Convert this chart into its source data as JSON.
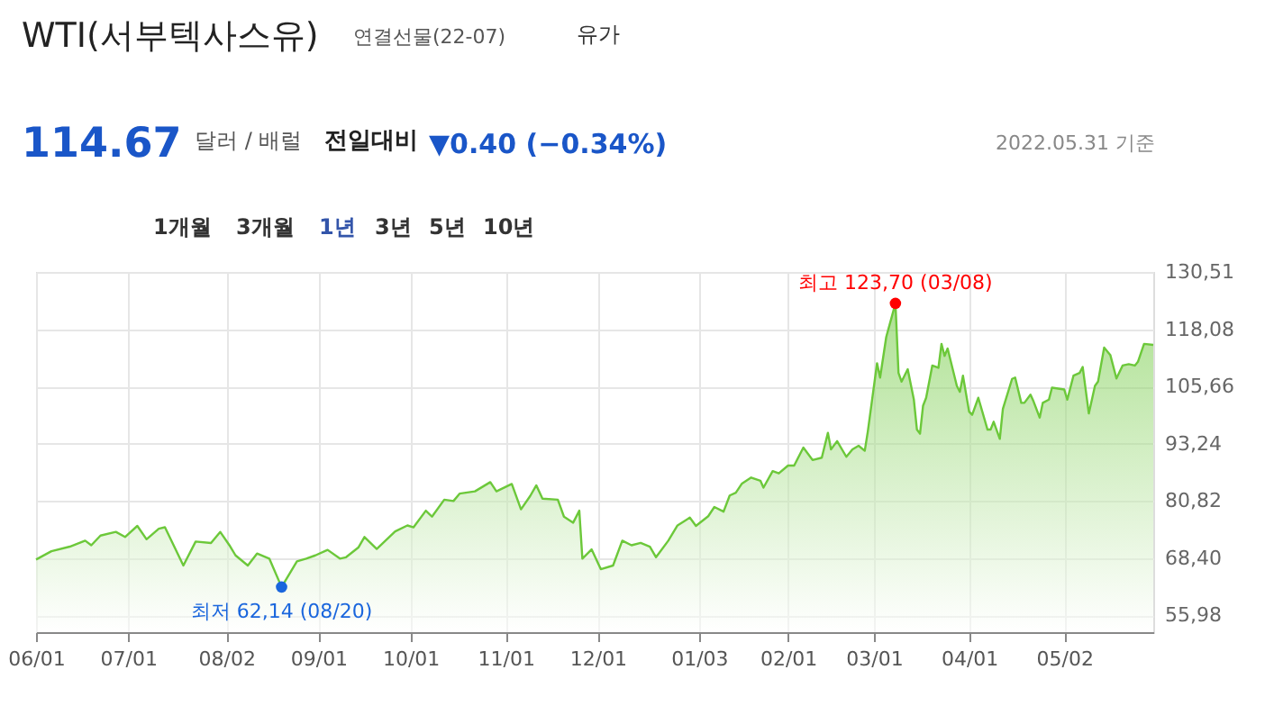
{
  "chart_data": {
    "type": "area",
    "title": "WTI(서부텍사스유)",
    "subtitle": "연결선물(22-07)",
    "annotations": [
      "유가",
      "114.67",
      "달러 / 배럴",
      "전일대비",
      "▼0.40 (−0.34%)",
      "2022.05.31 기준",
      "1개월",
      "3개월",
      "1년",
      "3년",
      "5년",
      "10년",
      {
        "text": "최고 123,70 (03/08)",
        "x": "2022-03-08",
        "y": 123.7
      },
      {
        "text": "최저 62,14 (08/20)",
        "x": "2021-08-20",
        "y": 62.14
      }
    ],
    "x": [
      "2021-06-01",
      "2021-06-06",
      "2021-06-12",
      "2021-06-17",
      "2021-06-19",
      "2021-06-22",
      "2021-06-27",
      "2021-06-30",
      "2021-07-04",
      "2021-07-07",
      "2021-07-11",
      "2021-07-13",
      "2021-07-19",
      "2021-07-23",
      "2021-07-28",
      "2021-07-31",
      "2021-08-03",
      "2021-08-05",
      "2021-08-09",
      "2021-08-12",
      "2021-08-16",
      "2021-08-20",
      "2021-08-25",
      "2021-08-28",
      "2021-08-31",
      "2021-09-04",
      "2021-09-08",
      "2021-09-10",
      "2021-09-14",
      "2021-09-16",
      "2021-09-20",
      "2021-09-26",
      "2021-09-30",
      "2021-10-02",
      "2021-10-06",
      "2021-10-08",
      "2021-10-12",
      "2021-10-15",
      "2021-10-17",
      "2021-10-22",
      "2021-10-27",
      "2021-10-29",
      "2021-11-03",
      "2021-11-06",
      "2021-11-09",
      "2021-11-11",
      "2021-11-13",
      "2021-11-18",
      "2021-11-20",
      "2021-11-23",
      "2021-11-25",
      "2021-11-26",
      "2021-11-29",
      "2021-12-02",
      "2021-12-06",
      "2021-12-09",
      "2021-12-12",
      "2021-12-15",
      "2021-12-18",
      "2021-12-20",
      "2021-12-24",
      "2021-12-27",
      "2021-12-31",
      "2022-01-02",
      "2022-01-06",
      "2022-01-08",
      "2022-01-11",
      "2022-01-13",
      "2022-01-15",
      "2022-01-17",
      "2022-01-20",
      "2022-01-23",
      "2022-01-24",
      "2022-01-27",
      "2022-01-29",
      "2022-02-01",
      "2022-02-03",
      "2022-02-06",
      "2022-02-09",
      "2022-02-12",
      "2022-02-14",
      "2022-02-15",
      "2022-02-17",
      "2022-02-20",
      "2022-02-22",
      "2022-02-24",
      "2022-02-26",
      "2022-02-27",
      "2022-03-02",
      "2022-03-03",
      "2022-03-05",
      "2022-03-08",
      "2022-03-09",
      "2022-03-10",
      "2022-03-12",
      "2022-03-14",
      "2022-03-15",
      "2022-03-16",
      "2022-03-17",
      "2022-03-18",
      "2022-03-20",
      "2022-03-22",
      "2022-03-23",
      "2022-03-24",
      "2022-03-25",
      "2022-03-28",
      "2022-03-29",
      "2022-03-30",
      "2022-04-01",
      "2022-04-02",
      "2022-04-04",
      "2022-04-07",
      "2022-04-08",
      "2022-04-09",
      "2022-04-11",
      "2022-04-12",
      "2022-04-15",
      "2022-04-16",
      "2022-04-18",
      "2022-04-19",
      "2022-04-21",
      "2022-04-22",
      "2022-04-24",
      "2022-04-25",
      "2022-04-27",
      "2022-04-28",
      "2022-05-02",
      "2022-05-03",
      "2022-05-05",
      "2022-05-07",
      "2022-05-08",
      "2022-05-10",
      "2022-05-12",
      "2022-05-13",
      "2022-05-15",
      "2022-05-17",
      "2022-05-19",
      "2022-05-21",
      "2022-05-23",
      "2022-05-25",
      "2022-05-26",
      "2022-05-28",
      "2022-05-31"
    ],
    "series": [
      {
        "color": "#6cc83a",
        "values": [
          68.1,
          69.9,
          70.9,
          72.2,
          71.2,
          73.3,
          74.1,
          73.0,
          75.4,
          72.5,
          74.8,
          75.1,
          66.8,
          72.0,
          71.7,
          74.1,
          71.2,
          69.0,
          66.8,
          69.4,
          68.3,
          62.14,
          67.7,
          68.3,
          69.0,
          70.2,
          68.3,
          68.6,
          70.7,
          73.0,
          70.4,
          74.2,
          75.5,
          75.1,
          78.7,
          77.4,
          81.1,
          80.8,
          82.4,
          82.9,
          84.9,
          82.9,
          84.5,
          79.0,
          81.9,
          84.2,
          81.3,
          81.1,
          77.4,
          76.1,
          78.7,
          68.3,
          70.3,
          66.0,
          66.8,
          72.2,
          71.2,
          71.7,
          70.9,
          68.6,
          72.2,
          75.5,
          77.2,
          75.4,
          77.5,
          79.5,
          78.5,
          82.0,
          82.6,
          84.6,
          85.9,
          85.2,
          83.7,
          87.3,
          86.8,
          88.5,
          88.5,
          92.4,
          89.7,
          90.2,
          95.6,
          92.0,
          93.8,
          90.4,
          92.0,
          92.8,
          91.7,
          95.9,
          110.7,
          107.6,
          116.4,
          123.7,
          108.6,
          106.7,
          109.4,
          102.8,
          96.3,
          95.4,
          101.5,
          103.2,
          110.2,
          109.7,
          114.9,
          112.3,
          113.9,
          105.8,
          104.5,
          108.0,
          100.2,
          99.5,
          103.2,
          96.3,
          96.3,
          98.0,
          94.3,
          100.8,
          107.3,
          107.6,
          102.1,
          102.1,
          103.9,
          102.4,
          98.9,
          102.1,
          102.8,
          105.4,
          105.0,
          102.8,
          108.0,
          108.6,
          109.9,
          99.8,
          105.8,
          106.7,
          114.1,
          112.5,
          107.4,
          110.2,
          110.5,
          110.2,
          111.0,
          114.9,
          114.67
        ]
      }
    ],
    "xlim": [
      "2021-06-01",
      "2022-05-31"
    ],
    "xticks": [
      {
        "value": "2021-06-01",
        "label": "06/01"
      },
      {
        "value": "2021-07-01",
        "label": "07/01"
      },
      {
        "value": "2021-08-02",
        "label": "08/02"
      },
      {
        "value": "2021-09-01",
        "label": "09/01"
      },
      {
        "value": "2021-10-01",
        "label": "10/01"
      },
      {
        "value": "2021-11-01",
        "label": "11/01"
      },
      {
        "value": "2021-12-01",
        "label": "12/01"
      },
      {
        "value": "2022-01-03",
        "label": "01/03"
      },
      {
        "value": "2022-02-01",
        "label": "02/01"
      },
      {
        "value": "2022-03-01",
        "label": "03/01"
      },
      {
        "value": "2022-04-01",
        "label": "04/01"
      },
      {
        "value": "2022-05-02",
        "label": "05/02"
      }
    ],
    "ylim": [
      52.34,
      130.51
    ],
    "yticks": [
      {
        "value": 55.98,
        "label": "55,98"
      },
      {
        "value": 68.4,
        "label": "68,40"
      },
      {
        "value": 80.82,
        "label": "80,82"
      },
      {
        "value": 93.24,
        "label": "93,24"
      },
      {
        "value": 105.66,
        "label": "105,66"
      },
      {
        "value": 118.08,
        "label": "118,08"
      },
      {
        "value": 130.51,
        "label": "130,51"
      }
    ],
    "grid": true
  }
}
